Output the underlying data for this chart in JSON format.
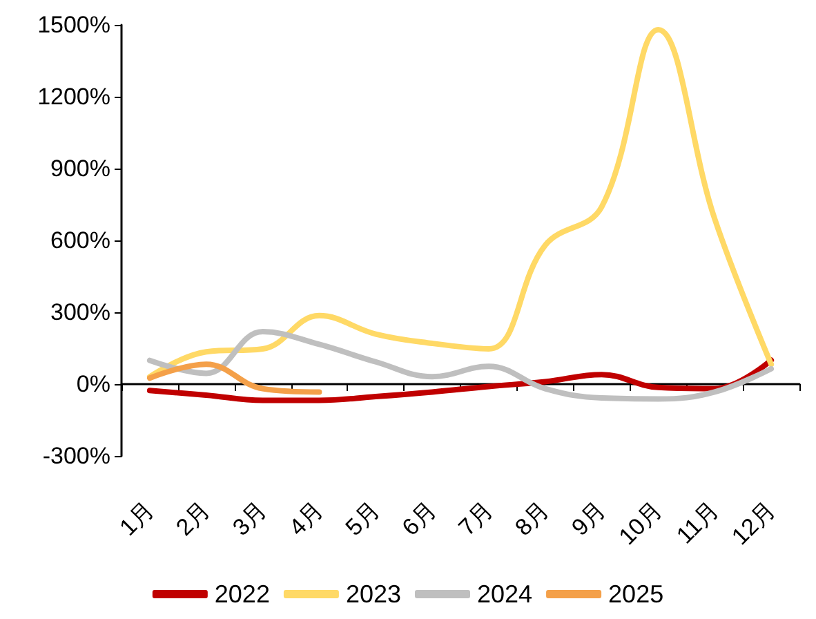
{
  "chart_data": {
    "type": "line",
    "categories": [
      "1月",
      "2月",
      "3月",
      "4月",
      "5月",
      "6月",
      "7月",
      "8月",
      "9月",
      "10月",
      "11月",
      "12月"
    ],
    "series": [
      {
        "name": "2022",
        "color": "#c00000",
        "values": [
          -27,
          -46,
          -68,
          -68,
          -52,
          -33,
          -10,
          10,
          40,
          -14,
          -19,
          100
        ]
      },
      {
        "name": "2023",
        "color": "#ffd966",
        "values": [
          31,
          135,
          147,
          286,
          209,
          170,
          147,
          580,
          740,
          1480,
          690,
          83
        ]
      },
      {
        "name": "2024",
        "color": "#bfbfbf",
        "values": [
          99,
          45,
          219,
          166,
          93,
          31,
          74,
          -19,
          -58,
          -62,
          -33,
          64
        ]
      },
      {
        "name": "2025",
        "color": "#f4a049",
        "values": [
          25,
          83,
          -19,
          -33,
          null,
          null,
          null,
          null,
          null,
          null,
          null,
          null
        ]
      }
    ],
    "ylim": [
      -300,
      1500
    ],
    "yticks": [
      {
        "value": -300,
        "label": "-300%"
      },
      {
        "value": 0,
        "label": "0%"
      },
      {
        "value": 300,
        "label": "300%"
      },
      {
        "value": 600,
        "label": "600%"
      },
      {
        "value": 900,
        "label": "900%"
      },
      {
        "value": 1200,
        "label": "1200%"
      },
      {
        "value": 1500,
        "label": "1500%"
      }
    ],
    "legend": "bottom",
    "marker": "none",
    "line_style": "solid"
  }
}
